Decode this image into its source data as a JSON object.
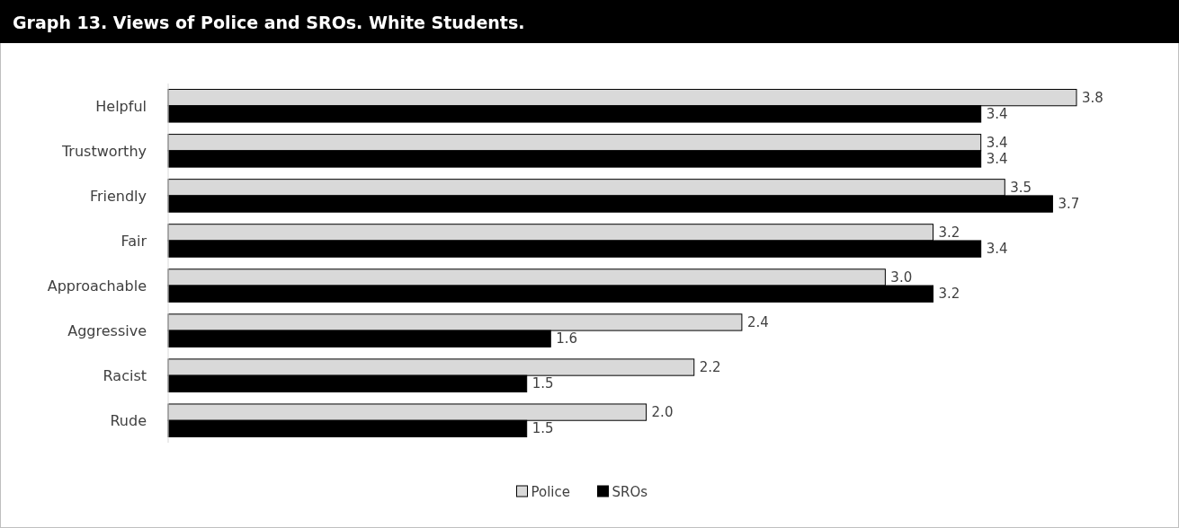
{
  "chart_data": {
    "type": "bar",
    "orientation": "horizontal",
    "title": "Graph 13. Views of Police and SROs. White Students.",
    "categories": [
      "Helpful",
      "Trustworthy",
      "Friendly",
      "Fair",
      "Approachable",
      "Aggressive",
      "Racist",
      "Rude"
    ],
    "series": [
      {
        "name": "Police",
        "color": "#d9d9d9",
        "values": [
          3.8,
          3.4,
          3.5,
          3.2,
          3.0,
          2.4,
          2.2,
          2.0
        ],
        "value_labels": [
          "3.8",
          "3.4",
          "3.5",
          "3.2",
          "3.0",
          "2.4",
          "2.2",
          "2.0"
        ]
      },
      {
        "name": "SROs",
        "color": "#000000",
        "values": [
          3.4,
          3.4,
          3.7,
          3.4,
          3.2,
          1.6,
          1.5,
          1.5
        ],
        "value_labels": [
          "3.4",
          "3.4",
          "3.7",
          "3.4",
          "3.2",
          "1.6",
          "1.5",
          "1.5"
        ]
      }
    ],
    "legend": "bottom"
  }
}
